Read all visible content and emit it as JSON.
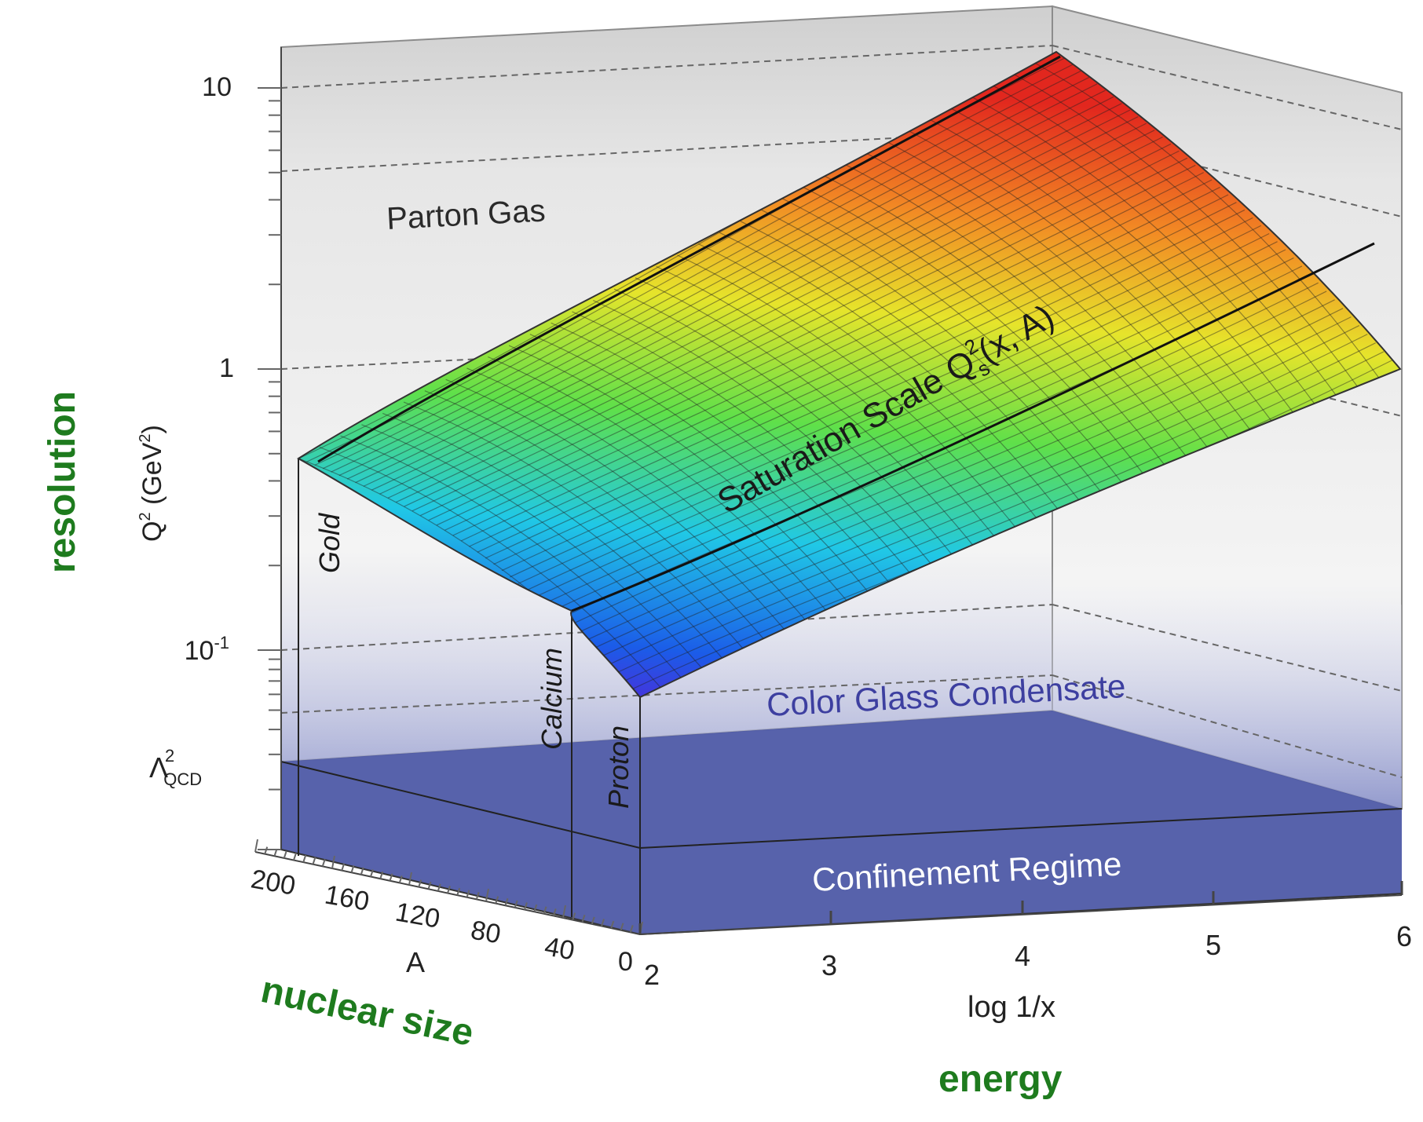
{
  "y_axis": {
    "label": "Q",
    "label_sup": "2",
    "label_unit": " (GeV",
    "label_unit_sup": "2",
    "label_close": ")",
    "ticks": [
      "10",
      "1",
      "10",
      "Λ"
    ],
    "tick_10m1_base": "10",
    "tick_10m1_exp": "-1",
    "tick_lambda": "Λ",
    "tick_lambda_sup": "2",
    "tick_lambda_sub": "QCD",
    "tick_10": "10",
    "tick_1": "1"
  },
  "a_axis": {
    "label": "A",
    "ticks": [
      "200",
      "160",
      "120",
      "80",
      "40",
      "0"
    ]
  },
  "x_axis": {
    "label": "log 1/x",
    "ticks": [
      "2",
      "3",
      "4",
      "5",
      "6"
    ]
  },
  "regions": {
    "parton_gas": "Parton Gas",
    "cgc": "Color Glass Condensate",
    "confinement": "Confinement Regime",
    "saturation_prefix": "Saturation Scale Q",
    "saturation_sup": "2",
    "saturation_sub": "s",
    "saturation_suffix": "(x, A)"
  },
  "nuclei": [
    "Gold",
    "Calcium",
    "Proton"
  ],
  "annotations": {
    "resolution": "resolution",
    "nuclear_size": "nuclear size",
    "energy": "energy"
  },
  "colors": {
    "annotation": "#1e7b1e",
    "cgc_text": "#3d3fa0",
    "confinement": "#4e5aa6",
    "box_gray": "#cfcfcf"
  }
}
